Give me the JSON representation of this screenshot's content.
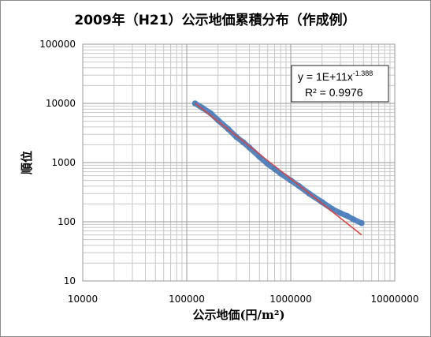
{
  "chart_data": {
    "type": "scatter",
    "title": "2009年（H21）公示地価累積分布（作成例）",
    "xlabel": "公示地価(円/m²)",
    "ylabel": "順位",
    "x_scale": "log",
    "y_scale": "log",
    "xlim": [
      10000,
      10000000
    ],
    "ylim": [
      10,
      100000
    ],
    "x_ticks": [
      "10000",
      "100000",
      "1000000",
      "10000000"
    ],
    "y_ticks": [
      "10",
      "100",
      "1000",
      "10000",
      "100000"
    ],
    "grid": true,
    "series": [
      {
        "type": "scatter",
        "color": "#4f81bd",
        "x": [
          120000,
          140000,
          170000,
          200000,
          250000,
          300000,
          350000,
          400000,
          500000,
          600000,
          700000,
          800000,
          1000000,
          1200000,
          1500000,
          2000000,
          2500000,
          3000000,
          3500000,
          4000000,
          4800000
        ],
        "y": [
          10000,
          8500,
          6800,
          5200,
          3700,
          2700,
          2200,
          1800,
          1250,
          950,
          780,
          650,
          500,
          400,
          300,
          215,
          165,
          140,
          125,
          110,
          95
        ]
      },
      {
        "type": "line",
        "color": "#e0403c",
        "x": [
          120000,
          4800000
        ],
        "y": [
          10040,
          60
        ]
      }
    ],
    "trendline": {
      "equation": {
        "base": "y = 1E+11x",
        "exponent": "-1.388"
      },
      "r2_label": "R² = 0.9976"
    }
  }
}
